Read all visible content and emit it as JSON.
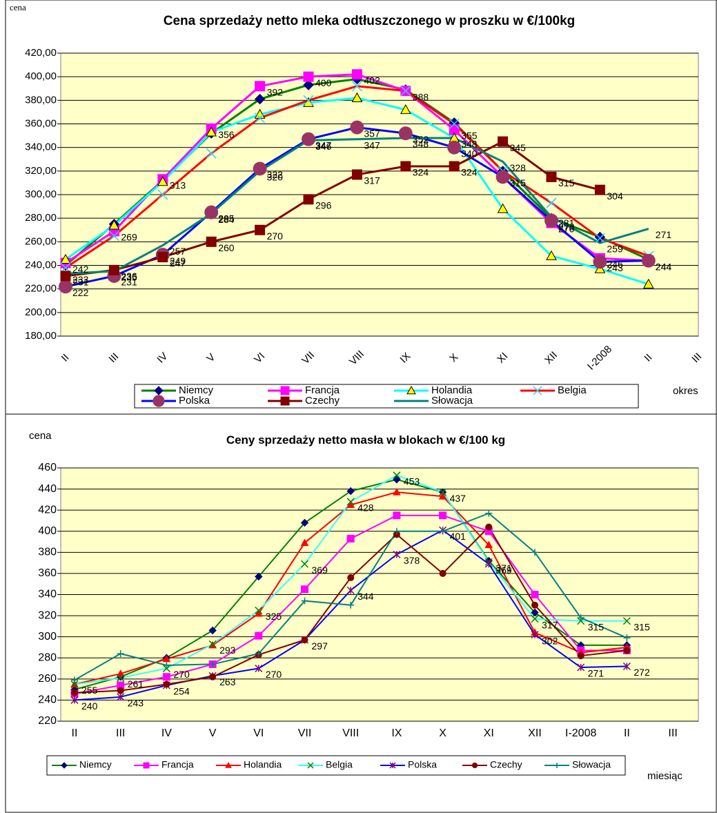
{
  "chart_data": [
    {
      "type": "line",
      "title": "Cena sprzedaży netto mleka odtłuszczonego w proszku w €/100kg",
      "y_label": "cena",
      "x_label": "okres",
      "categories": [
        "II",
        "III",
        "IV",
        "V",
        "VI",
        "VII",
        "VIII",
        "IX",
        "X",
        "XI",
        "XII",
        "I-2008",
        "II",
        "III"
      ],
      "ylim": [
        180,
        420
      ],
      "yticks": [
        {
          "value": 180,
          "label": "180,00"
        },
        {
          "value": 200,
          "label": "200,00"
        },
        {
          "value": 220,
          "label": "220,00"
        },
        {
          "value": 240,
          "label": "240,00"
        },
        {
          "value": 260,
          "label": "260,00"
        },
        {
          "value": 280,
          "label": "280,00"
        },
        {
          "value": 300,
          "label": "300,00"
        },
        {
          "value": 320,
          "label": "320,00"
        },
        {
          "value": 340,
          "label": "340,00"
        },
        {
          "value": 360,
          "label": "360,00"
        },
        {
          "value": 380,
          "label": "380,00"
        },
        {
          "value": 400,
          "label": "400,00"
        },
        {
          "value": 420,
          "label": "420,00"
        }
      ],
      "grid": true,
      "plot_background": "#ffffc8",
      "series": [
        {
          "name": "Niemcy",
          "color": "#008000",
          "marker": "diamond",
          "marker_color": "#000080",
          "values": [
            240,
            275,
            312,
            352,
            381,
            393,
            398,
            389,
            361,
            320,
            280,
            264,
            245,
            null
          ]
        },
        {
          "name": "Francja",
          "color": "#ff00ff",
          "marker": "square",
          "marker_color": "#ff00ff",
          "data_labels": true,
          "values": [
            242,
            269,
            313,
            356,
            392,
            400,
            402,
            388,
            355,
            315,
            276,
            246,
            244,
            null
          ]
        },
        {
          "name": "Holandia",
          "color": "#00ffff",
          "marker": "triangle",
          "marker_color": "#ffff00",
          "values": [
            245,
            274,
            311,
            353,
            368,
            378,
            382,
            372,
            348,
            288,
            248,
            237,
            224,
            null
          ]
        },
        {
          "name": "Belgia",
          "color": "#ff0000",
          "marker": "x",
          "marker_color": "#33ccff",
          "values": [
            238,
            265,
            300,
            335,
            365,
            380,
            392,
            388,
            360,
            320,
            293,
            263,
            248,
            null
          ]
        },
        {
          "name": "Polska",
          "color": "#0000ff",
          "marker": "circle",
          "marker_color": "#993366",
          "data_labels": true,
          "values": [
            222,
            231,
            249,
            285,
            322,
            347,
            357,
            352,
            340,
            315,
            278,
            243,
            244,
            null
          ]
        },
        {
          "name": "Czechy",
          "color": "#800000",
          "marker": "square",
          "marker_color": "#800000",
          "data_labels": true,
          "values": [
            231,
            236,
            247,
            260,
            270,
            296,
            317,
            324,
            324,
            345,
            315,
            304,
            null,
            null
          ]
        },
        {
          "name": "Słowacja",
          "color": "#008080",
          "marker": "none",
          "marker_color": "#008080",
          "data_labels": true,
          "values": [
            233,
            235,
            257,
            284,
            320,
            346,
            347,
            348,
            348,
            328,
            281,
            259,
            271,
            null
          ]
        }
      ]
    },
    {
      "type": "line",
      "title": "Ceny sprzedaży netto masła w blokach w €/100 kg",
      "y_label": "cena",
      "x_label": "miesiąc",
      "categories": [
        "II",
        "III",
        "IV",
        "V",
        "VI",
        "VII",
        "VIII",
        "IX",
        "X",
        "XI",
        "XII",
        "I-2008",
        "II",
        "III"
      ],
      "ylim": [
        220,
        460
      ],
      "yticks": [
        220,
        240,
        260,
        280,
        300,
        320,
        340,
        360,
        380,
        400,
        420,
        440,
        460
      ],
      "grid": true,
      "plot_background": "#ffffc8",
      "series": [
        {
          "name": "Niemcy",
          "color": "#008000",
          "marker": "diamond",
          "marker_color": "#000080",
          "values": [
            250,
            262,
            280,
            306,
            357,
            408,
            438,
            449,
            437,
            372,
            323,
            292,
            292,
            null
          ]
        },
        {
          "name": "Francja",
          "color": "#ff00ff",
          "marker": "square",
          "marker_color": "#ff00ff",
          "values": [
            246,
            254,
            262,
            274,
            301,
            345,
            393,
            415,
            415,
            400,
            340,
            287,
            287,
            null
          ]
        },
        {
          "name": "Holandia",
          "color": "#ff0000",
          "marker": "triangle",
          "marker_color": "#ff0000",
          "values": [
            255,
            265,
            279,
            292,
            322,
            389,
            425,
            437,
            433,
            387,
            304,
            285,
            290,
            null
          ]
        },
        {
          "name": "Belgia",
          "color": "#33ffff",
          "marker": "x",
          "marker_color": "#008000",
          "data_labels": true,
          "values": [
            255,
            261,
            270,
            293,
            325,
            369,
            428,
            453,
            437,
            371,
            317,
            315,
            315,
            null
          ]
        },
        {
          "name": "Polska",
          "color": "#0000ff",
          "marker": "asterisk",
          "marker_color": "#800080",
          "data_labels": true,
          "values": [
            240,
            243,
            254,
            263,
            270,
            297,
            344,
            378,
            401,
            369,
            302,
            271,
            272,
            null
          ]
        },
        {
          "name": "Czechy",
          "color": "#800000",
          "marker": "circle",
          "marker_color": "#800000",
          "values": [
            247,
            249,
            255,
            262,
            283,
            297,
            356,
            397,
            360,
            404,
            330,
            282,
            287,
            null
          ]
        },
        {
          "name": "Słowacja",
          "color": "#008080",
          "marker": "plus",
          "marker_color": "#008080",
          "values": [
            259,
            284,
            273,
            274,
            284,
            334,
            330,
            400,
            400,
            417,
            380,
            318,
            299,
            null
          ]
        }
      ]
    }
  ]
}
